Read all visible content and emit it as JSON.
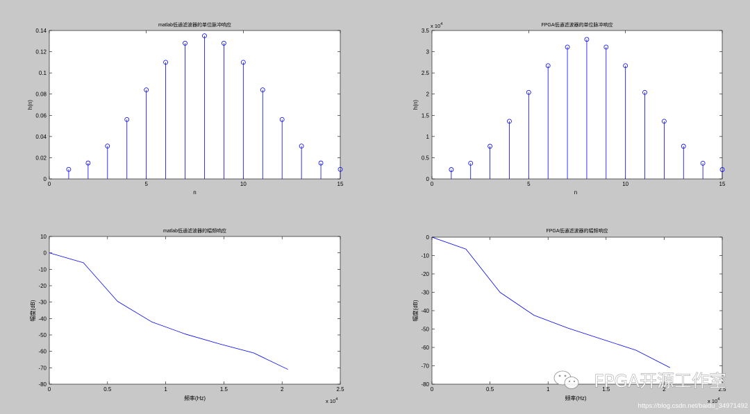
{
  "figure": {
    "background": "#c8c8c8",
    "axes_background": "#ffffff"
  },
  "chart_data": [
    {
      "type": "bar",
      "marker": "circle",
      "title": "matlab低通滤波器的单位脉冲响应",
      "xlabel": "n",
      "ylabel": "h(n)",
      "x": [
        1,
        2,
        3,
        4,
        5,
        6,
        7,
        8,
        9,
        10,
        11,
        12,
        13,
        14,
        15
      ],
      "values": [
        0.009,
        0.015,
        0.031,
        0.056,
        0.084,
        0.11,
        0.128,
        0.135,
        0.128,
        0.11,
        0.084,
        0.056,
        0.031,
        0.015,
        0.009
      ],
      "xlim": [
        0,
        15
      ],
      "ylim": [
        0,
        0.14
      ],
      "xticks": [
        0,
        5,
        10,
        15
      ],
      "xtick_labels": [
        "0",
        "5",
        "10",
        "15"
      ],
      "yticks": [
        0,
        0.02,
        0.04,
        0.06,
        0.08,
        0.1,
        0.12,
        0.14
      ],
      "ytick_labels": [
        "0",
        "0.02",
        "0.04",
        "0.06",
        "0.08",
        "0.1",
        "0.12",
        "0.14"
      ],
      "grid": false,
      "color": "#0000ff"
    },
    {
      "type": "bar",
      "marker": "circle",
      "title": "FPGA低通滤波器的单位脉冲响应",
      "xlabel": "n",
      "ylabel": "h(n)",
      "y_scale_factor": {
        "base": "x 10",
        "exponent": "4"
      },
      "x": [
        1,
        2,
        3,
        4,
        5,
        6,
        7,
        8,
        9,
        10,
        11,
        12,
        13,
        14,
        15
      ],
      "values": [
        2200,
        3700,
        7700,
        13600,
        20400,
        26700,
        31100,
        32900,
        31100,
        26700,
        20400,
        13600,
        7700,
        3700,
        2200
      ],
      "xlim": [
        0,
        15
      ],
      "ylim": [
        0,
        35000
      ],
      "xticks": [
        0,
        5,
        10,
        15
      ],
      "xtick_labels": [
        "0",
        "5",
        "10",
        "15"
      ],
      "yticks": [
        0,
        5000,
        10000,
        15000,
        20000,
        25000,
        30000,
        35000
      ],
      "ytick_labels": [
        "0",
        "0.5",
        "1",
        "1.5",
        "2",
        "2.5",
        "3",
        "3.5"
      ],
      "grid": false,
      "color": "#0000ff"
    },
    {
      "type": "line",
      "title": "matlab低通滤波器的幅频响应",
      "xlabel": "频率(Hz)",
      "ylabel": "幅度(dB)",
      "x_scale_factor": {
        "base": "x 10",
        "exponent": "4"
      },
      "x": [
        0,
        2930,
        5860,
        8790,
        11710,
        14640,
        17570,
        20500
      ],
      "y": [
        0,
        -6,
        -29.5,
        -42,
        -49.5,
        -55.5,
        -61,
        -71
      ],
      "xlim": [
        0,
        25000
      ],
      "ylim": [
        -80,
        10
      ],
      "xticks": [
        0,
        5000,
        10000,
        15000,
        20000,
        25000
      ],
      "xtick_labels": [
        "0",
        "0.5",
        "1",
        "1.5",
        "2",
        "2.5"
      ],
      "yticks": [
        -80,
        -70,
        -60,
        -50,
        -40,
        -30,
        -20,
        -10,
        0,
        10
      ],
      "ytick_labels": [
        "-80",
        "-70",
        "-60",
        "-50",
        "-40",
        "-30",
        "-20",
        "-10",
        "0",
        "10"
      ],
      "grid": false,
      "color": "#0000ff"
    },
    {
      "type": "line",
      "title": "FPGA低通滤波器的幅频响应",
      "xlabel": "频率(Hz)",
      "ylabel": "幅度(dB)",
      "x_scale_factor": {
        "base": "x 10",
        "exponent": "4"
      },
      "x": [
        0,
        2930,
        5860,
        8790,
        11710,
        14640,
        17570,
        20500
      ],
      "y": [
        0,
        -6.5,
        -30,
        -42.5,
        -49.5,
        -55.5,
        -61.5,
        -71
      ],
      "xlim": [
        0,
        25000
      ],
      "ylim": [
        -80,
        0
      ],
      "xticks": [
        0,
        5000,
        10000,
        15000,
        20000,
        25000
      ],
      "xtick_labels": [
        "0",
        "0.5",
        "1",
        "1.5",
        "2",
        "2.5"
      ],
      "yticks": [
        -80,
        -70,
        -60,
        -50,
        -40,
        -30,
        -20,
        -10,
        0
      ],
      "ytick_labels": [
        "-80",
        "-70",
        "-60",
        "-50",
        "-40",
        "-30",
        "-20",
        "-10",
        "0"
      ],
      "grid": false,
      "color": "#0000ff"
    }
  ],
  "watermark": {
    "icon": "wechat-icon",
    "brand": "FPGA开源工作室",
    "url": "https://blog.csdn.net/baidu_34971492"
  }
}
